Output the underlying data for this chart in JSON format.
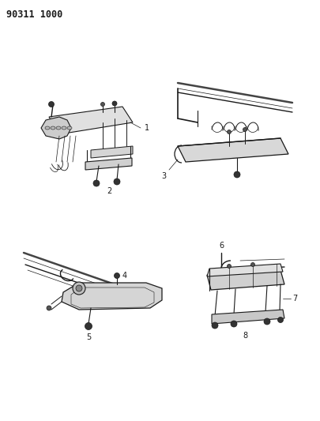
{
  "title_text": "90311 1000",
  "title_fontsize": 8.5,
  "bg_color": "#ffffff",
  "line_color": "#1a1a1a",
  "label_fontsize": 7,
  "diagram_lw": 0.65
}
